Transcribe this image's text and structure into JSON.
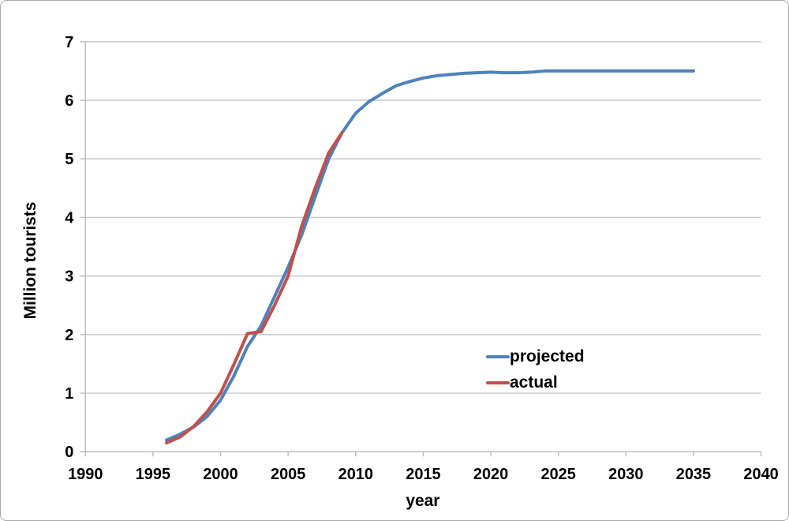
{
  "window": {
    "background": "#FFFFFF",
    "border_color": "#A9A9A9"
  },
  "chart_data": {
    "type": "line",
    "title": "",
    "xlabel": "year",
    "ylabel": "Million tourists",
    "xlim": [
      1990,
      2040
    ],
    "ylim": [
      0,
      7
    ],
    "x_ticks": [
      1990,
      1995,
      2000,
      2005,
      2010,
      2015,
      2020,
      2025,
      2030,
      2035,
      2040
    ],
    "y_ticks": [
      0,
      1,
      2,
      3,
      4,
      5,
      6,
      7
    ],
    "grid": "horizontal-only",
    "legend_position": "center-right-inside",
    "colors": {
      "gridline": "#C8C8C8",
      "axis": "#BDBDBD",
      "text": "#000000",
      "projected": "#4F81BD",
      "actual": "#C0504D"
    },
    "series": [
      {
        "name": "projected",
        "color": "#4F81BD",
        "points": [
          [
            1996,
            0.2
          ],
          [
            1997,
            0.3
          ],
          [
            1998,
            0.42
          ],
          [
            1999,
            0.6
          ],
          [
            2000,
            0.88
          ],
          [
            2001,
            1.3
          ],
          [
            2002,
            1.8
          ],
          [
            2003,
            2.15
          ],
          [
            2004,
            2.65
          ],
          [
            2005,
            3.15
          ],
          [
            2006,
            3.7
          ],
          [
            2007,
            4.35
          ],
          [
            2008,
            5.0
          ],
          [
            2009,
            5.45
          ],
          [
            2010,
            5.78
          ],
          [
            2011,
            5.98
          ],
          [
            2012,
            6.12
          ],
          [
            2013,
            6.25
          ],
          [
            2014,
            6.32
          ],
          [
            2015,
            6.38
          ],
          [
            2016,
            6.42
          ],
          [
            2017,
            6.44
          ],
          [
            2018,
            6.46
          ],
          [
            2019,
            6.47
          ],
          [
            2020,
            6.48
          ],
          [
            2021,
            6.47
          ],
          [
            2022,
            6.47
          ],
          [
            2023,
            6.48
          ],
          [
            2024,
            6.5
          ],
          [
            2025,
            6.5
          ],
          [
            2026,
            6.5
          ],
          [
            2027,
            6.5
          ],
          [
            2028,
            6.5
          ],
          [
            2029,
            6.5
          ],
          [
            2030,
            6.5
          ],
          [
            2031,
            6.5
          ],
          [
            2032,
            6.5
          ],
          [
            2033,
            6.5
          ],
          [
            2034,
            6.5
          ],
          [
            2035,
            6.5
          ]
        ]
      },
      {
        "name": "actual",
        "color": "#C0504D",
        "points": [
          [
            1996,
            0.15
          ],
          [
            1997,
            0.25
          ],
          [
            1998,
            0.43
          ],
          [
            1999,
            0.68
          ],
          [
            2000,
            1.0
          ],
          [
            2001,
            1.5
          ],
          [
            2002,
            2.02
          ],
          [
            2003,
            2.05
          ],
          [
            2004,
            2.5
          ],
          [
            2005,
            3.0
          ],
          [
            2006,
            3.85
          ],
          [
            2007,
            4.5
          ],
          [
            2008,
            5.1
          ],
          [
            2009,
            5.45
          ]
        ]
      }
    ]
  }
}
